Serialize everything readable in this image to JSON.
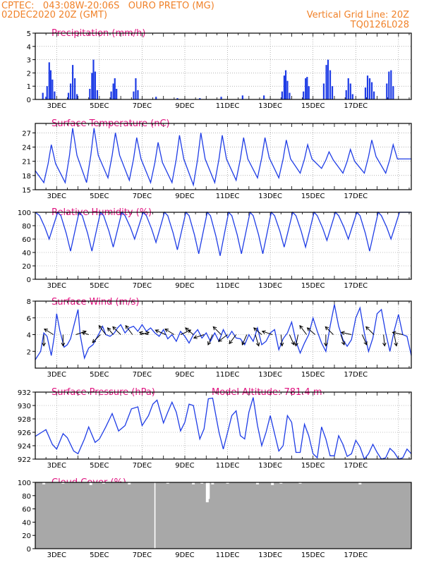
{
  "header": {
    "line1_left": "CPTEC:   043:08W-20:06S   OURO PRETO (MG)",
    "line2_left": "02DEC2020 20Z (GMT)",
    "line1_right": "Vertical Grid Line: 20Z",
    "line2_right": "TQ0126L028"
  },
  "colors": {
    "header": "#f0822a",
    "title": "#e0137f",
    "line": "#1f3de6",
    "bar": "#1f3de6",
    "cloud": "#a8a8a8",
    "arrow": "#000000"
  },
  "x_tick_labels": [
    "3DEC",
    "5DEC",
    "7DEC",
    "9DEC",
    "11DEC",
    "13DEC",
    "15DEC",
    "17DEC"
  ],
  "chart_data": [
    {
      "id": "precip",
      "type": "bar",
      "title": "Precipitation (mm/h)",
      "x_unit": "day offset from 02DEC2020 20Z",
      "ylim": [
        0,
        5
      ],
      "yticks": [
        0,
        1,
        2,
        3,
        4,
        5
      ],
      "events": [
        {
          "x": 0.35,
          "y": 0.5
        },
        {
          "x": 0.5,
          "y": 0.2
        },
        {
          "x": 0.55,
          "y": 1.0
        },
        {
          "x": 0.65,
          "y": 2.8
        },
        {
          "x": 0.72,
          "y": 2.2
        },
        {
          "x": 0.8,
          "y": 1.5
        },
        {
          "x": 0.9,
          "y": 0.6
        },
        {
          "x": 1.55,
          "y": 0.5
        },
        {
          "x": 1.65,
          "y": 1.2
        },
        {
          "x": 1.75,
          "y": 2.6
        },
        {
          "x": 1.85,
          "y": 1.6
        },
        {
          "x": 1.95,
          "y": 0.4
        },
        {
          "x": 2.55,
          "y": 0.8
        },
        {
          "x": 2.65,
          "y": 2.0
        },
        {
          "x": 2.72,
          "y": 3.0
        },
        {
          "x": 2.8,
          "y": 2.1
        },
        {
          "x": 2.9,
          "y": 0.7
        },
        {
          "x": 3.55,
          "y": 0.6
        },
        {
          "x": 3.65,
          "y": 1.2
        },
        {
          "x": 3.72,
          "y": 1.6
        },
        {
          "x": 3.8,
          "y": 0.8
        },
        {
          "x": 4.6,
          "y": 0.6
        },
        {
          "x": 4.7,
          "y": 1.6
        },
        {
          "x": 4.8,
          "y": 0.7
        },
        {
          "x": 5.65,
          "y": 0.2
        },
        {
          "x": 6.65,
          "y": 0.1
        },
        {
          "x": 7.7,
          "y": 0.1
        },
        {
          "x": 8.7,
          "y": 0.2
        },
        {
          "x": 9.7,
          "y": 0.3
        },
        {
          "x": 10.7,
          "y": 0.3
        },
        {
          "x": 11.55,
          "y": 0.6
        },
        {
          "x": 11.65,
          "y": 1.8
        },
        {
          "x": 11.72,
          "y": 2.2
        },
        {
          "x": 11.8,
          "y": 1.4
        },
        {
          "x": 11.9,
          "y": 0.5
        },
        {
          "x": 12.55,
          "y": 0.6
        },
        {
          "x": 12.65,
          "y": 1.6
        },
        {
          "x": 12.72,
          "y": 1.7
        },
        {
          "x": 12.8,
          "y": 1.0
        },
        {
          "x": 13.5,
          "y": 1.2
        },
        {
          "x": 13.62,
          "y": 2.6
        },
        {
          "x": 13.7,
          "y": 3.0
        },
        {
          "x": 13.8,
          "y": 2.2
        },
        {
          "x": 13.9,
          "y": 1.0
        },
        {
          "x": 14.55,
          "y": 0.7
        },
        {
          "x": 14.65,
          "y": 1.6
        },
        {
          "x": 14.75,
          "y": 1.2
        },
        {
          "x": 14.85,
          "y": 0.4
        },
        {
          "x": 15.45,
          "y": 0.9
        },
        {
          "x": 15.55,
          "y": 1.8
        },
        {
          "x": 15.65,
          "y": 1.6
        },
        {
          "x": 15.75,
          "y": 1.3
        },
        {
          "x": 15.85,
          "y": 0.6
        },
        {
          "x": 16.45,
          "y": 1.2
        },
        {
          "x": 16.55,
          "y": 2.1
        },
        {
          "x": 16.65,
          "y": 2.2
        },
        {
          "x": 16.75,
          "y": 1.0
        }
      ]
    },
    {
      "id": "temp",
      "type": "line",
      "title": "Surface Temperature (nC)",
      "ylim": [
        15,
        29
      ],
      "yticks": [
        15,
        18,
        21,
        24,
        27
      ],
      "daily_min": [
        16.5,
        16.5,
        16.5,
        17.5,
        17.0,
        16.5,
        16.5,
        16.0,
        16.5,
        17.0,
        17.5,
        17.5,
        18.5,
        19.5,
        18.5,
        18.5,
        18.5
      ],
      "daily_max": [
        24.5,
        28.0,
        28.0,
        27.0,
        26.0,
        25.0,
        26.5,
        27.0,
        26.5,
        26.0,
        26.0,
        25.5,
        24.5,
        23.0,
        23.5,
        25.5,
        24.5
      ],
      "start": 19.0,
      "end": 21.5
    },
    {
      "id": "rh",
      "type": "line",
      "title": "Relative Humidity (%)",
      "ylim": [
        0,
        100
      ],
      "yticks": [
        0,
        20,
        40,
        60,
        80,
        100
      ],
      "daily_min": [
        60,
        42,
        42,
        48,
        60,
        55,
        44,
        38,
        35,
        38,
        38,
        48,
        48,
        58,
        60,
        42,
        60
      ],
      "start": 100,
      "end": 100
    },
    {
      "id": "wind",
      "type": "line",
      "title": "Surface Wind (m/s)",
      "ylim": [
        0,
        8
      ],
      "yticks": [
        2,
        4,
        6,
        8
      ],
      "speed": [
        [
          0.0,
          1.0
        ],
        [
          0.25,
          2.0
        ],
        [
          0.4,
          4.2
        ],
        [
          0.55,
          3.8
        ],
        [
          0.75,
          1.5
        ],
        [
          0.9,
          4.0
        ],
        [
          1.0,
          6.5
        ],
        [
          1.15,
          4.5
        ],
        [
          1.35,
          2.5
        ],
        [
          1.5,
          2.8
        ],
        [
          1.65,
          3.5
        ],
        [
          1.85,
          5.5
        ],
        [
          2.0,
          7.0
        ],
        [
          2.1,
          4.0
        ],
        [
          2.3,
          1.2
        ],
        [
          2.5,
          2.4
        ],
        [
          2.7,
          2.8
        ],
        [
          2.85,
          3.5
        ],
        [
          3.0,
          4.2
        ],
        [
          3.15,
          5.0
        ],
        [
          3.3,
          4.0
        ],
        [
          3.5,
          3.8
        ],
        [
          3.7,
          4.2
        ],
        [
          3.85,
          4.8
        ],
        [
          4.0,
          5.2
        ],
        [
          4.2,
          4.2
        ],
        [
          4.4,
          4.8
        ],
        [
          4.6,
          5.0
        ],
        [
          4.8,
          4.4
        ],
        [
          5.0,
          5.2
        ],
        [
          5.2,
          4.4
        ],
        [
          5.4,
          4.8
        ],
        [
          5.6,
          4.2
        ],
        [
          5.8,
          3.8
        ],
        [
          6.0,
          4.6
        ],
        [
          6.2,
          3.5
        ],
        [
          6.4,
          4.0
        ],
        [
          6.6,
          3.2
        ],
        [
          6.8,
          4.4
        ],
        [
          7.0,
          3.8
        ],
        [
          7.2,
          3.0
        ],
        [
          7.4,
          4.0
        ],
        [
          7.6,
          4.6
        ],
        [
          7.8,
          3.6
        ],
        [
          8.0,
          4.2
        ],
        [
          8.2,
          3.2
        ],
        [
          8.4,
          4.2
        ],
        [
          8.6,
          3.2
        ],
        [
          8.8,
          4.6
        ],
        [
          9.0,
          3.6
        ],
        [
          9.2,
          4.4
        ],
        [
          9.4,
          3.6
        ],
        [
          9.6,
          3.5
        ],
        [
          9.8,
          2.8
        ],
        [
          10.0,
          4.0
        ],
        [
          10.2,
          3.2
        ],
        [
          10.4,
          4.8
        ],
        [
          10.6,
          2.8
        ],
        [
          10.8,
          3.2
        ],
        [
          11.0,
          4.2
        ],
        [
          11.2,
          4.6
        ],
        [
          11.4,
          2.2
        ],
        [
          11.6,
          3.5
        ],
        [
          11.8,
          4.2
        ],
        [
          12.0,
          5.5
        ],
        [
          12.2,
          3.2
        ],
        [
          12.4,
          1.8
        ],
        [
          12.6,
          3.0
        ],
        [
          12.8,
          4.0
        ],
        [
          13.0,
          6.0
        ],
        [
          13.2,
          4.4
        ],
        [
          13.4,
          3.0
        ],
        [
          13.6,
          2.0
        ],
        [
          13.8,
          5.0
        ],
        [
          14.0,
          7.6
        ],
        [
          14.2,
          5.0
        ],
        [
          14.4,
          3.4
        ],
        [
          14.6,
          2.6
        ],
        [
          14.8,
          3.4
        ],
        [
          15.0,
          6.0
        ],
        [
          15.2,
          7.2
        ],
        [
          15.4,
          4.2
        ],
        [
          15.6,
          2.0
        ],
        [
          15.8,
          3.6
        ],
        [
          16.0,
          6.5
        ],
        [
          16.2,
          7.0
        ],
        [
          16.4,
          4.2
        ],
        [
          16.6,
          2.0
        ],
        [
          16.8,
          4.5
        ],
        [
          17.0,
          6.4
        ],
        [
          17.2,
          4.0
        ],
        [
          17.4,
          3.8
        ],
        [
          17.6,
          1.5
        ]
      ],
      "arrows": [
        {
          "x": 0.4,
          "dx": 0.0,
          "dy": -1
        },
        {
          "x": 0.85,
          "dx": -0.8,
          "dy": 0.5
        },
        {
          "x": 1.3,
          "dx": 0,
          "dy": -1
        },
        {
          "x": 1.9,
          "dx": 0.9,
          "dy": 0.3
        },
        {
          "x": 2.5,
          "dx": -0.6,
          "dy": 0.2
        },
        {
          "x": 3.05,
          "dx": -0.7,
          "dy": -0.7
        },
        {
          "x": 3.3,
          "dx": -0.6,
          "dy": 0.8
        },
        {
          "x": 3.65,
          "dx": -0.5,
          "dy": 0.6
        },
        {
          "x": 4.0,
          "dx": -0.7,
          "dy": 0.7
        },
        {
          "x": 4.55,
          "dx": -0.6,
          "dy": 0.8
        },
        {
          "x": 4.9,
          "dx": 0.8,
          "dy": 0.2
        },
        {
          "x": 5.3,
          "dx": -0.8,
          "dy": 0.2
        },
        {
          "x": 6.1,
          "dx": -0.9,
          "dy": 0.4
        },
        {
          "x": 6.5,
          "dx": -0.8,
          "dy": 0.5
        },
        {
          "x": 6.8,
          "dx": 0.9,
          "dy": 0.4
        },
        {
          "x": 7.4,
          "dx": -0.7,
          "dy": 0.6
        },
        {
          "x": 7.9,
          "dx": -0.9,
          "dy": -0.3
        },
        {
          "x": 8.3,
          "dx": -0.4,
          "dy": -0.9
        },
        {
          "x": 8.7,
          "dx": -0.7,
          "dy": 0.7
        },
        {
          "x": 9.0,
          "dx": -0.8,
          "dy": -0.6
        },
        {
          "x": 9.4,
          "dx": -0.6,
          "dy": -0.8
        },
        {
          "x": 9.9,
          "dx": -0.4,
          "dy": -0.9
        },
        {
          "x": 10.3,
          "dx": 0.3,
          "dy": -1
        },
        {
          "x": 10.6,
          "dx": -0.7,
          "dy": 0.6
        },
        {
          "x": 11.1,
          "dx": -0.9,
          "dy": 0.3
        },
        {
          "x": 11.5,
          "dx": 0.1,
          "dy": -1
        },
        {
          "x": 11.9,
          "dx": 0.4,
          "dy": -0.9
        },
        {
          "x": 12.3,
          "dx": -0.2,
          "dy": -1
        },
        {
          "x": 12.7,
          "dx": -0.6,
          "dy": 0.8
        },
        {
          "x": 13.1,
          "dx": -0.7,
          "dy": 0.6
        },
        {
          "x": 13.6,
          "dx": 0.0,
          "dy": -1
        },
        {
          "x": 13.95,
          "dx": -0.7,
          "dy": 0.7
        },
        {
          "x": 14.3,
          "dx": 0.3,
          "dy": -0.9
        },
        {
          "x": 14.8,
          "dx": -0.9,
          "dy": 0.2
        },
        {
          "x": 15.3,
          "dx": 0.4,
          "dy": -0.9
        },
        {
          "x": 15.85,
          "dx": -0.7,
          "dy": 0.7
        },
        {
          "x": 16.3,
          "dx": 0.1,
          "dy": -1
        },
        {
          "x": 16.8,
          "dx": 0.2,
          "dy": -1
        },
        {
          "x": 17.2,
          "dx": -0.9,
          "dy": 0.2
        }
      ]
    },
    {
      "id": "pressure",
      "type": "line",
      "title": "Surface Pressure (hPa)",
      "subtitle": "Model Altitude: 781.4 m",
      "ylim": [
        922,
        932
      ],
      "yticks": [
        922,
        924,
        926,
        928,
        930,
        932
      ],
      "points": [
        [
          0.0,
          925.4
        ],
        [
          0.3,
          926.0
        ],
        [
          0.5,
          926.4
        ],
        [
          0.8,
          924.2
        ],
        [
          1.0,
          923.5
        ],
        [
          1.3,
          925.8
        ],
        [
          1.5,
          925.2
        ],
        [
          1.8,
          923.2
        ],
        [
          2.0,
          922.8
        ],
        [
          2.3,
          925.0
        ],
        [
          2.5,
          926.8
        ],
        [
          2.8,
          924.5
        ],
        [
          3.0,
          925.0
        ],
        [
          3.3,
          926.8
        ],
        [
          3.6,
          928.8
        ],
        [
          3.9,
          926.2
        ],
        [
          4.2,
          927.0
        ],
        [
          4.5,
          929.5
        ],
        [
          4.8,
          929.8
        ],
        [
          5.0,
          927.0
        ],
        [
          5.3,
          928.5
        ],
        [
          5.5,
          930.2
        ],
        [
          5.7,
          930.8
        ],
        [
          6.0,
          927.4
        ],
        [
          6.2,
          929.0
        ],
        [
          6.4,
          930.5
        ],
        [
          6.6,
          929.0
        ],
        [
          6.8,
          926.2
        ],
        [
          7.0,
          927.5
        ],
        [
          7.2,
          930.2
        ],
        [
          7.4,
          930.0
        ],
        [
          7.7,
          925.0
        ],
        [
          7.9,
          926.5
        ],
        [
          8.1,
          931.0
        ],
        [
          8.3,
          931.1
        ],
        [
          8.6,
          926.0
        ],
        [
          8.8,
          923.5
        ],
        [
          9.0,
          926.0
        ],
        [
          9.2,
          928.5
        ],
        [
          9.4,
          929.2
        ],
        [
          9.6,
          925.5
        ],
        [
          9.8,
          925.0
        ],
        [
          10.0,
          929.0
        ],
        [
          10.2,
          931.2
        ],
        [
          10.4,
          927.0
        ],
        [
          10.6,
          924.0
        ],
        [
          10.8,
          926.0
        ],
        [
          11.0,
          928.5
        ],
        [
          11.2,
          925.8
        ],
        [
          11.4,
          923.2
        ],
        [
          11.6,
          924.0
        ],
        [
          11.8,
          928.5
        ],
        [
          12.0,
          927.5
        ],
        [
          12.2,
          923.0
        ],
        [
          12.4,
          923.0
        ],
        [
          12.6,
          927.2
        ],
        [
          12.8,
          925.5
        ],
        [
          13.0,
          922.8
        ],
        [
          13.2,
          922.2
        ],
        [
          13.4,
          926.8
        ],
        [
          13.6,
          925.0
        ],
        [
          13.8,
          922.5
        ],
        [
          14.0,
          922.5
        ],
        [
          14.2,
          925.5
        ],
        [
          14.4,
          924.2
        ],
        [
          14.6,
          922.4
        ],
        [
          14.8,
          922.8
        ],
        [
          15.0,
          924.8
        ],
        [
          15.2,
          923.8
        ],
        [
          15.4,
          922.0
        ],
        [
          15.6,
          922.8
        ],
        [
          15.8,
          924.2
        ],
        [
          16.0,
          923.0
        ],
        [
          16.2,
          922.0
        ],
        [
          16.4,
          922.2
        ],
        [
          16.6,
          923.6
        ],
        [
          16.8,
          923.0
        ],
        [
          17.0,
          922.0
        ],
        [
          17.2,
          922.2
        ],
        [
          17.4,
          923.5
        ],
        [
          17.6,
          922.8
        ]
      ]
    },
    {
      "id": "cloud",
      "type": "area",
      "title": "Cloud Cover (%)",
      "ylim": [
        0,
        100
      ],
      "yticks": [
        0,
        20,
        40,
        60,
        80,
        100
      ],
      "baseline": 100,
      "dips": [
        {
          "x": 0.4,
          "y": 97
        },
        {
          "x": 1.3,
          "y": 98
        },
        {
          "x": 2.6,
          "y": 96
        },
        {
          "x": 3.2,
          "y": 98
        },
        {
          "x": 4.4,
          "y": 97
        },
        {
          "x": 5.6,
          "y": 0
        },
        {
          "x": 6.2,
          "y": 98
        },
        {
          "x": 7.4,
          "y": 97
        },
        {
          "x": 7.8,
          "y": 98
        },
        {
          "x": 8.05,
          "y": 70
        },
        {
          "x": 8.1,
          "y": 75
        },
        {
          "x": 8.3,
          "y": 97
        },
        {
          "x": 9.0,
          "y": 98
        },
        {
          "x": 10.4,
          "y": 97
        },
        {
          "x": 11.1,
          "y": 96
        },
        {
          "x": 11.5,
          "y": 98
        },
        {
          "x": 12.4,
          "y": 98
        },
        {
          "x": 15.2,
          "y": 97
        }
      ]
    }
  ]
}
